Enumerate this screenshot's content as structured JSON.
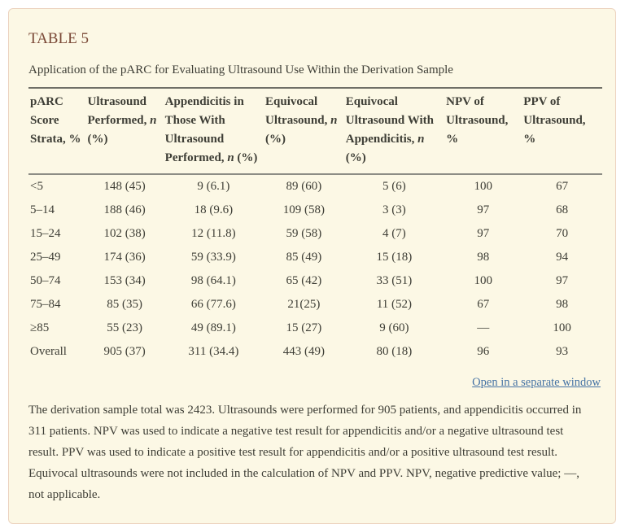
{
  "card": {
    "title": "TABLE 5",
    "caption": "Application of the pARC for Evaluating Ultrasound Use Within the Derivation Sample",
    "link_label": "Open in a separate window",
    "footnote": "The derivation sample total was 2423. Ultrasounds were performed for 905 patients, and appendicitis occurred in 311 patients. NPV was used to indicate a negative test result for appendicitis and/or a negative ultrasound test result. PPV was used to indicate a positive test result for appendicitis and/or a positive ultrasound test result. Equivocal ultrasounds were not included in the calculation of NPV and PPV. NPV, negative predictive value; —, not applicable."
  },
  "table": {
    "headers": [
      {
        "pre": "pARC Score Strata, %",
        "n": "",
        "post": ""
      },
      {
        "pre": "Ultrasound Performed, ",
        "n": "n",
        "post": " (%)"
      },
      {
        "pre": "Appendicitis in Those With Ultrasound Performed, ",
        "n": "n",
        "post": " (%)"
      },
      {
        "pre": "Equivocal Ultrasound, ",
        "n": "n",
        "post": " (%)"
      },
      {
        "pre": "Equivocal Ultrasound With Appendicitis, ",
        "n": "n",
        "post": " (%)"
      },
      {
        "pre": "NPV of Ultrasound, %",
        "n": "",
        "post": ""
      },
      {
        "pre": "PPV of Ultrasound, %",
        "n": "",
        "post": ""
      }
    ],
    "rows": [
      [
        "<5",
        "148 (45)",
        "9 (6.1)",
        "89 (60)",
        "5 (6)",
        "100",
        "67"
      ],
      [
        "5–14",
        "188 (46)",
        "18 (9.6)",
        "109 (58)",
        "3 (3)",
        "97",
        "68"
      ],
      [
        "15–24",
        "102 (38)",
        "12 (11.8)",
        "59 (58)",
        "4 (7)",
        "97",
        "70"
      ],
      [
        "25–49",
        "174 (36)",
        "59 (33.9)",
        "85 (49)",
        "15 (18)",
        "98",
        "94"
      ],
      [
        "50–74",
        "153 (34)",
        "98 (64.1)",
        "65 (42)",
        "33 (51)",
        "100",
        "97"
      ],
      [
        "75–84",
        "85 (35)",
        "66 (77.6)",
        "21(25)",
        "11 (52)",
        "67",
        "98"
      ],
      [
        "≥85",
        "55 (23)",
        "49 (89.1)",
        "15 (27)",
        "9 (60)",
        "—",
        "100"
      ],
      [
        "Overall",
        "905 (37)",
        "311 (34.4)",
        "443 (49)",
        "80 (18)",
        "96",
        "93"
      ]
    ]
  },
  "colors": {
    "card_background": "#fcf8e5",
    "card_border": "#ecd3bf",
    "title_text": "#7b4a38",
    "body_text": "#3e3e36",
    "link": "#4673a4",
    "rule_top": "#6f6f67",
    "rule_header_bottom": "#8d8d85"
  }
}
